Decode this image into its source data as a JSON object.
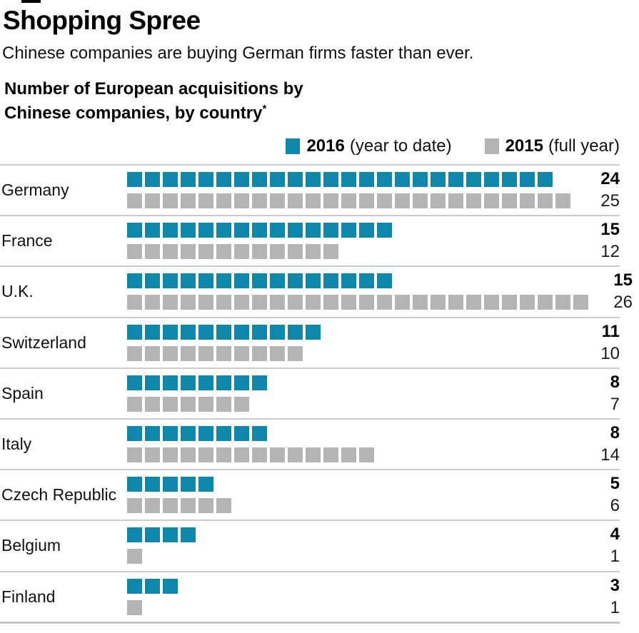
{
  "header": {
    "title": "Shopping Spree",
    "subtitle": "Chinese companies are buying German firms faster than ever.",
    "chart_heading_line1": "Number of European acquisitions by",
    "chart_heading_line2": "Chinese companies, by country",
    "footnote_mark": "*"
  },
  "legend": {
    "items": [
      {
        "year": "2016",
        "qualifier": "(year to date)",
        "color": "#0E87AA"
      },
      {
        "year": "2015",
        "qualifier": "(full year)",
        "color": "#B4B4B4"
      }
    ]
  },
  "colors": {
    "series_2016": "#0E87AA",
    "series_2015": "#B4B4B4",
    "divider": "#CCCCCC"
  },
  "chart_data": {
    "type": "bar",
    "subtype": "waffle-unit-bars",
    "title": "Number of European acquisitions by Chinese companies, by country*",
    "categories": [
      "Germany",
      "France",
      "U.K.",
      "Switzerland",
      "Spain",
      "Italy",
      "Czech Republic",
      "Belgium",
      "Finland"
    ],
    "series": [
      {
        "name": "2016 (year to date)",
        "color": "#0E87AA",
        "values": [
          24,
          15,
          15,
          11,
          8,
          8,
          5,
          4,
          3
        ]
      },
      {
        "name": "2015 (full year)",
        "color": "#B4B4B4",
        "values": [
          25,
          12,
          26,
          10,
          7,
          14,
          6,
          1,
          1
        ]
      }
    ],
    "unit": "1 square = 1 acquisition",
    "legend_position": "top-right",
    "grid": false
  }
}
